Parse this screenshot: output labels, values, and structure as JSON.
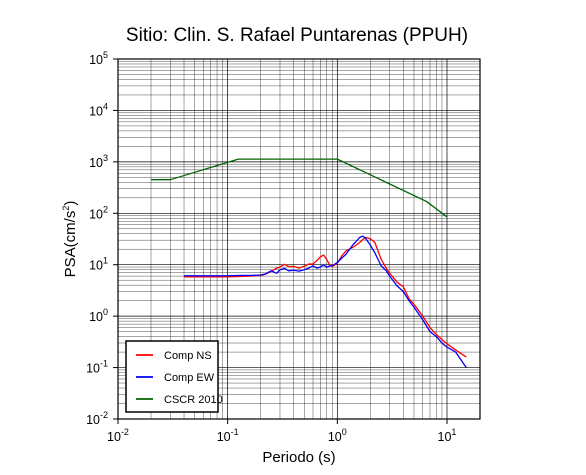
{
  "chart_data": {
    "type": "line",
    "title": "Sitio: Clin. S. Rafael Puntarenas (PPUH)",
    "xlabel": "Periodo (s)",
    "ylabel": {
      "base": "PSA(cm/s",
      "sup": "2",
      "end": ")"
    },
    "x_scale": "log",
    "y_scale": "log",
    "xlim": [
      0.01,
      20
    ],
    "ylim": [
      0.01,
      100000
    ],
    "grid": true,
    "legend_position": "bottom-left",
    "x_ticks": [
      {
        "value": 0.01,
        "base": "10",
        "exp": "-2"
      },
      {
        "value": 0.1,
        "base": "10",
        "exp": "-1"
      },
      {
        "value": 1,
        "base": "10",
        "exp": "0"
      },
      {
        "value": 10,
        "base": "10",
        "exp": "1"
      }
    ],
    "y_ticks": [
      {
        "value": 0.01,
        "base": "10",
        "exp": "-2"
      },
      {
        "value": 0.1,
        "base": "10",
        "exp": "-1"
      },
      {
        "value": 1,
        "base": "10",
        "exp": "0"
      },
      {
        "value": 10,
        "base": "10",
        "exp": "1"
      },
      {
        "value": 100,
        "base": "10",
        "exp": "2"
      },
      {
        "value": 1000,
        "base": "10",
        "exp": "3"
      },
      {
        "value": 10000,
        "base": "10",
        "exp": "4"
      },
      {
        "value": 100000,
        "base": "10",
        "exp": "5"
      }
    ],
    "series": [
      {
        "name": "Comp NS",
        "color": "#ff0000",
        "x": [
          0.04,
          0.06,
          0.08,
          0.1,
          0.13,
          0.16,
          0.2,
          0.22,
          0.25,
          0.28,
          0.3,
          0.33,
          0.36,
          0.4,
          0.45,
          0.5,
          0.55,
          0.6,
          0.65,
          0.7,
          0.75,
          0.8,
          0.85,
          0.9,
          1.0,
          1.1,
          1.2,
          1.4,
          1.6,
          1.8,
          1.9,
          2.0,
          2.2,
          2.5,
          2.8,
          3.0,
          3.5,
          4.0,
          4.5,
          5.0,
          6.0,
          7.0,
          8.0,
          9.0,
          10.0,
          12.0,
          15.0
        ],
        "y": [
          5.8,
          5.8,
          5.8,
          5.8,
          5.9,
          6.0,
          6.2,
          6.5,
          7.5,
          8.6,
          9.0,
          10.2,
          9.2,
          9.3,
          8.6,
          9.4,
          10.3,
          10.3,
          12.0,
          14.2,
          15.4,
          12.7,
          10.0,
          9.2,
          10.7,
          15.0,
          18.5,
          22.0,
          27.0,
          34.0,
          33.0,
          32.0,
          27.0,
          13.0,
          8.5,
          6.8,
          4.6,
          3.7,
          2.2,
          1.7,
          1.0,
          0.6,
          0.44,
          0.35,
          0.29,
          0.22,
          0.16
        ]
      },
      {
        "name": "Comp EW",
        "color": "#0000ff",
        "x": [
          0.04,
          0.06,
          0.08,
          0.1,
          0.13,
          0.16,
          0.2,
          0.22,
          0.25,
          0.28,
          0.3,
          0.33,
          0.36,
          0.4,
          0.45,
          0.5,
          0.55,
          0.6,
          0.65,
          0.7,
          0.75,
          0.8,
          0.85,
          0.9,
          1.0,
          1.1,
          1.2,
          1.4,
          1.5,
          1.6,
          1.7,
          1.8,
          2.0,
          2.2,
          2.5,
          2.8,
          3.0,
          3.5,
          4.0,
          4.5,
          5.0,
          6.0,
          7.0,
          8.0,
          9.0,
          10.0,
          12.0,
          15.0
        ],
        "y": [
          6.1,
          6.1,
          6.1,
          6.1,
          6.2,
          6.2,
          6.3,
          6.6,
          7.6,
          6.8,
          8.0,
          8.5,
          7.6,
          7.8,
          7.5,
          8.0,
          8.6,
          9.5,
          8.6,
          9.0,
          10.0,
          8.9,
          9.5,
          9.6,
          11.0,
          13.5,
          16.0,
          25.0,
          29.0,
          34.0,
          36.0,
          33.0,
          24.0,
          17.0,
          9.6,
          7.6,
          6.0,
          3.9,
          3.0,
          2.0,
          1.5,
          0.85,
          0.5,
          0.4,
          0.3,
          0.25,
          0.2,
          0.1
        ]
      },
      {
        "name": "CSCR 2010",
        "color": "#006400",
        "x": [
          0.02,
          0.03,
          0.125,
          1.0,
          6.5,
          10.0
        ],
        "y": [
          450,
          450,
          1130,
          1130,
          170,
          85
        ]
      }
    ]
  }
}
